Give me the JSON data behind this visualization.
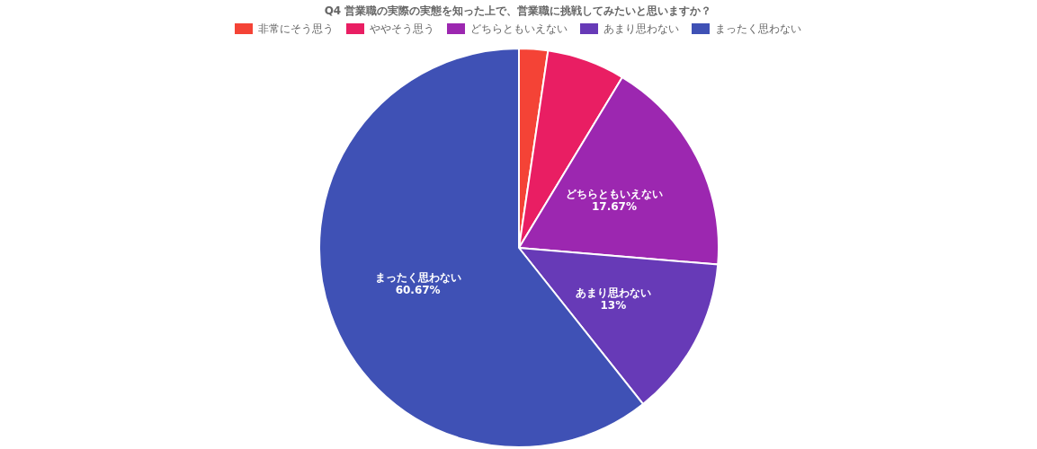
{
  "chart_data": {
    "type": "pie",
    "title": "Q4 営業職の実際の実態を知った上で、営業職に挑戦してみたいと思いますか？",
    "categories": [
      "非常にそう思う",
      "ややそう思う",
      "どちらともいえない",
      "あまり思わない",
      "まったく思わない"
    ],
    "values": [
      2.33,
      6.33,
      17.67,
      13,
      60.67
    ],
    "colors": [
      "#f44336",
      "#e91e63",
      "#9c27b0",
      "#673ab7",
      "#3f51b5"
    ],
    "value_labels": [
      null,
      null,
      "17.67%",
      "13%",
      "60.67%"
    ],
    "legend": "top"
  }
}
